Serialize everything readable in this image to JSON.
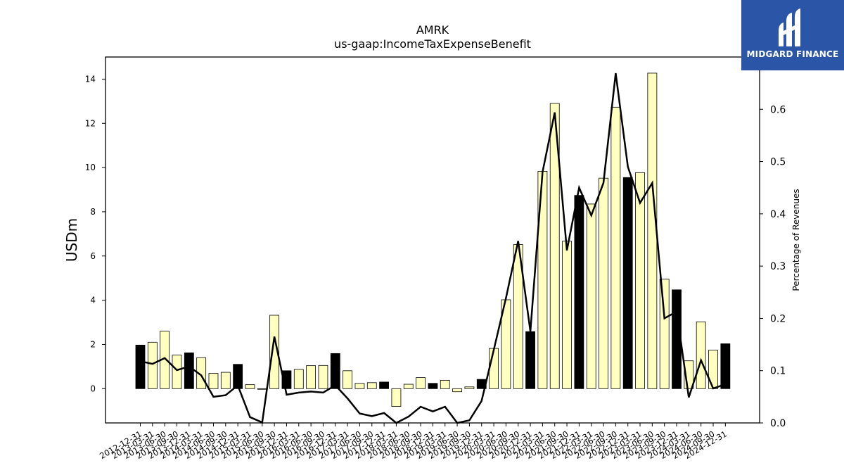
{
  "brand": {
    "name": "MIDGARD FINANCE",
    "bg_color": "#2b56a8",
    "text_color": "#ffffff"
  },
  "colors": {
    "bar_annual": "#000000",
    "bar_quarter": "#ffffbf",
    "bar_edge": "#000000",
    "line": "#000000"
  },
  "chart_data": {
    "type": "bar",
    "title": "AMRK",
    "subtitle": "us-gaap:IncomeTaxExpenseBenefit",
    "ylabel": "USDm",
    "y2label": "Percentage of Revenues",
    "ylim": [
      -1.55,
      15.0
    ],
    "y2lim": [
      0.0,
      0.7
    ],
    "yticks": [
      0,
      2,
      4,
      6,
      8,
      10,
      12,
      14
    ],
    "y2ticks": [
      0.0,
      0.1,
      0.2,
      0.3,
      0.4,
      0.5,
      0.6
    ],
    "categories": [
      "2012-12-31",
      "2013-03-31",
      "2013-06-30",
      "2013-09-30",
      "2013-12-31",
      "2014-03-31",
      "2014-06-30",
      "2014-09-30",
      "2014-12-31",
      "2015-03-31",
      "2015-06-30",
      "2015-09-30",
      "2015-12-31",
      "2016-03-31",
      "2016-06-30",
      "2016-09-30",
      "2016-12-31",
      "2017-03-31",
      "2017-06-30",
      "2017-09-30",
      "2017-12-31",
      "2018-03-31",
      "2018-06-30",
      "2018-09-30",
      "2018-12-31",
      "2019-03-31",
      "2019-06-30",
      "2019-09-30",
      "2019-12-31",
      "2020-03-31",
      "2020-06-30",
      "2020-09-30",
      "2020-12-31",
      "2021-03-31",
      "2021-06-30",
      "2021-09-30",
      "2021-12-31",
      "2022-03-31",
      "2022-06-30",
      "2022-09-30",
      "2022-12-31",
      "2023-03-31",
      "2023-06-30",
      "2023-09-30",
      "2023-12-31",
      "2024-03-31",
      "2024-06-30",
      "2024-09-30",
      "2024-12-31"
    ],
    "series": [
      {
        "kind": "bar",
        "values": [
          1.97,
          2.1,
          2.6,
          1.52,
          1.62,
          1.4,
          0.69,
          0.74,
          1.1,
          0.18,
          -0.03,
          3.32,
          0.81,
          0.87,
          1.04,
          1.05,
          1.59,
          0.81,
          0.24,
          0.27,
          0.3,
          -0.8,
          0.2,
          0.5,
          0.24,
          0.38,
          -0.14,
          0.08,
          0.42,
          1.82,
          4.02,
          6.52,
          2.58,
          9.83,
          12.9,
          6.67,
          8.74,
          8.35,
          9.52,
          12.73,
          9.55,
          9.77,
          14.27,
          4.95,
          4.47,
          1.26,
          3.02,
          1.74,
          2.03
        ],
        "annual": [
          true,
          false,
          false,
          false,
          true,
          false,
          false,
          false,
          true,
          false,
          false,
          false,
          true,
          false,
          false,
          false,
          true,
          false,
          false,
          false,
          true,
          false,
          false,
          false,
          true,
          false,
          false,
          false,
          true,
          false,
          false,
          false,
          true,
          false,
          false,
          false,
          true,
          false,
          false,
          false,
          true,
          false,
          false,
          false,
          true,
          false,
          false,
          false,
          true
        ]
      },
      {
        "kind": "line",
        "axis": "right",
        "values": [
          0.118,
          0.113,
          0.124,
          0.101,
          0.108,
          0.091,
          0.05,
          0.053,
          0.072,
          0.011,
          0.001,
          0.165,
          0.054,
          0.058,
          0.06,
          0.058,
          0.072,
          0.047,
          0.018,
          0.013,
          0.019,
          -0.03,
          0.012,
          0.031,
          0.022,
          0.031,
          -0.008,
          0.005,
          0.042,
          0.14,
          0.239,
          0.348,
          0.175,
          0.48,
          0.594,
          0.33,
          0.45,
          0.397,
          0.459,
          0.669,
          0.49,
          0.421,
          0.459,
          0.2,
          0.213,
          0.049,
          0.12,
          0.066,
          0.074
        ]
      }
    ]
  }
}
